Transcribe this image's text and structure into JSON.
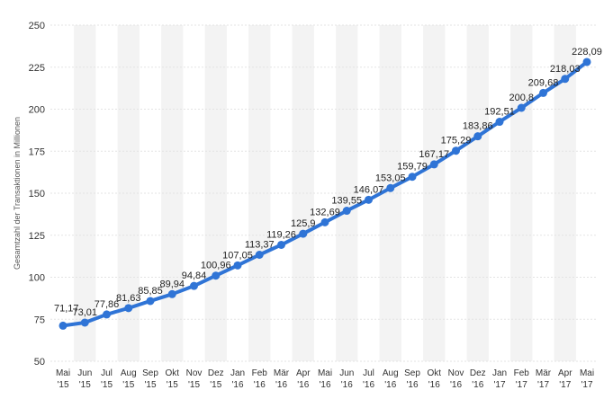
{
  "chart_data": {
    "type": "line",
    "title": "",
    "xlabel": "",
    "ylabel": "Gesamtzahl der Transaktionen in Millionen",
    "ylim": [
      50,
      250
    ],
    "yticks": [
      50,
      75,
      100,
      125,
      150,
      175,
      200,
      225,
      250
    ],
    "grid": true,
    "categories": [
      {
        "month": "Mai",
        "year": "'15"
      },
      {
        "month": "Jun",
        "year": "'15"
      },
      {
        "month": "Jul",
        "year": "'15"
      },
      {
        "month": "Aug",
        "year": "'15"
      },
      {
        "month": "Sep",
        "year": "'15"
      },
      {
        "month": "Okt",
        "year": "'15"
      },
      {
        "month": "Nov",
        "year": "'15"
      },
      {
        "month": "Dez",
        "year": "'15"
      },
      {
        "month": "Jan",
        "year": "'16"
      },
      {
        "month": "Feb",
        "year": "'16"
      },
      {
        "month": "Mär",
        "year": "'16"
      },
      {
        "month": "Apr",
        "year": "'16"
      },
      {
        "month": "Mai",
        "year": "'16"
      },
      {
        "month": "Jun",
        "year": "'16"
      },
      {
        "month": "Jul",
        "year": "'16"
      },
      {
        "month": "Aug",
        "year": "'16"
      },
      {
        "month": "Sep",
        "year": "'16"
      },
      {
        "month": "Okt",
        "year": "'16"
      },
      {
        "month": "Nov",
        "year": "'16"
      },
      {
        "month": "Dez",
        "year": "'16"
      },
      {
        "month": "Jan",
        "year": "'17"
      },
      {
        "month": "Feb",
        "year": "'17"
      },
      {
        "month": "Mär",
        "year": "'17"
      },
      {
        "month": "Apr",
        "year": "'17"
      },
      {
        "month": "Mai",
        "year": "'17"
      }
    ],
    "series": [
      {
        "color": "#2f74d6",
        "values": [
          71.17,
          73.01,
          77.86,
          81.63,
          85.85,
          89.94,
          94.84,
          100.96,
          107.05,
          113.37,
          119.26,
          125.9,
          132.69,
          139.55,
          146.07,
          153.05,
          159.79,
          167.17,
          175.29,
          183.86,
          192.51,
          200.8,
          209.68,
          218.03,
          228.09
        ],
        "labels": [
          "71,17",
          "73,01",
          "77,86",
          "81,63",
          "85,85",
          "89,94",
          "94,84",
          "100,96",
          "107,05",
          "113,37",
          "119,26",
          "125,9",
          "132,69",
          "139,55",
          "146,07",
          "153,05",
          "159,79",
          "167,17",
          "175,29",
          "183,86",
          "192,51",
          "200,8",
          "209,68",
          "218,03",
          "228,09"
        ]
      }
    ],
    "colors": {
      "band": "#f3f3f3",
      "grid": "#e3e3e3",
      "line": "#2f74d6"
    }
  }
}
